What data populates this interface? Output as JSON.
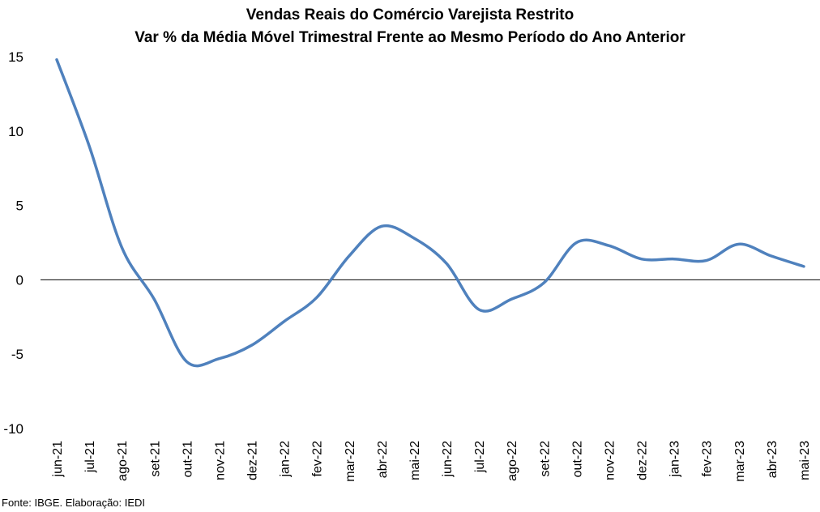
{
  "chart_data": {
    "type": "line",
    "title": "Vendas Reais do Comércio Varejista Restrito",
    "subtitle": "Var % da Média Móvel Trimestral Frente ao Mesmo Período do Ano Anterior",
    "xlabel": "",
    "ylabel": "",
    "categories": [
      "jun-21",
      "jul-21",
      "ago-21",
      "set-21",
      "out-21",
      "nov-21",
      "dez-21",
      "jan-22",
      "fev-22",
      "mar-22",
      "abr-22",
      "mai-22",
      "jun-22",
      "jul-22",
      "ago-22",
      "set-22",
      "out-22",
      "nov-22",
      "dez-22",
      "jan-23",
      "fev-23",
      "mar-23",
      "abr-23",
      "mai-23"
    ],
    "series": [
      {
        "values": [
          14.8,
          9.0,
          2.2,
          -1.3,
          -5.5,
          -5.3,
          -4.4,
          -2.8,
          -1.2,
          1.6,
          3.6,
          2.8,
          1.1,
          -2.0,
          -1.3,
          -0.2,
          2.5,
          2.3,
          1.4,
          1.4,
          1.3,
          2.4,
          1.6,
          0.9
        ]
      }
    ],
    "ylim": [
      -10,
      15
    ],
    "yticks": [
      -10,
      -5,
      0,
      5,
      10,
      15
    ],
    "grid": false,
    "line_color": "#4F81BD"
  },
  "footer": {
    "source": "Fonte: IBGE. Elaboração: IEDI"
  }
}
